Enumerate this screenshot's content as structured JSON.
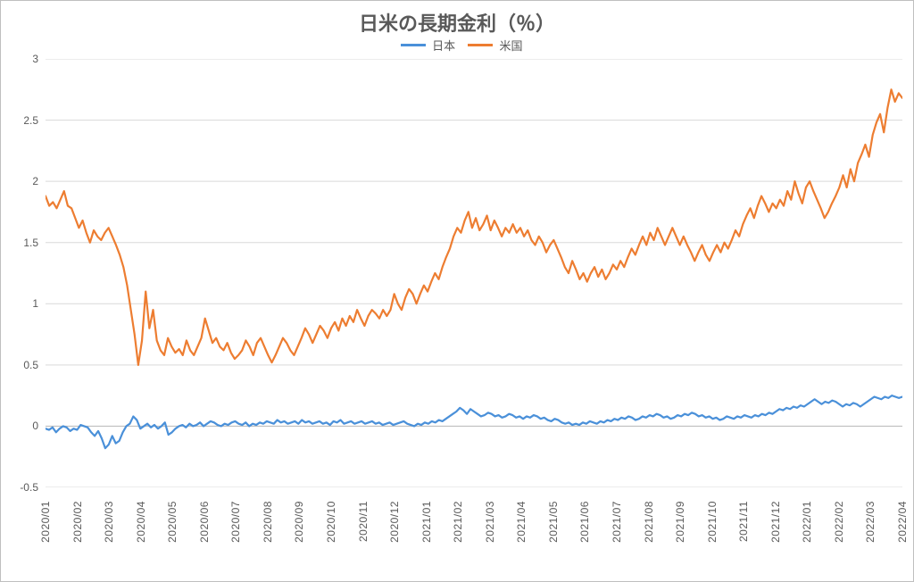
{
  "chart": {
    "type": "line",
    "title": "日米の長期金利（％）",
    "title_fontsize": 22,
    "title_color": "#595959",
    "background_color": "#ffffff",
    "plot_border_color": "#bfbfbf",
    "grid_color": "#d9d9d9",
    "axis_line_color": "#bfbfbf",
    "ylim": [
      -0.5,
      3.0
    ],
    "yticks": [
      -0.5,
      0,
      0.5,
      1,
      1.5,
      2,
      2.5,
      3
    ],
    "ytick_labels": [
      "-0.5",
      "0",
      "0.5",
      "1",
      "1.5",
      "2",
      "2.5",
      "3"
    ],
    "ytick_fontsize": 12,
    "x_categories": [
      "2020/01",
      "2020/02",
      "2020/03",
      "2020/04",
      "2020/05",
      "2020/06",
      "2020/07",
      "2020/08",
      "2020/09",
      "2020/10",
      "2020/11",
      "2020/12",
      "2021/01",
      "2021/02",
      "2021/03",
      "2021/04",
      "2021/05",
      "2021/06",
      "2021/07",
      "2021/08",
      "2021/09",
      "2021/10",
      "2021/11",
      "2021/12",
      "2022/01",
      "2022/02",
      "2022/03",
      "2022/04"
    ],
    "xtick_rotation": -90,
    "xtick_fontsize": 12,
    "legend": {
      "position": "top-center",
      "fontsize": 13,
      "items": [
        {
          "label": "日本",
          "color": "#4a90d9"
        },
        {
          "label": "米国",
          "color": "#ed7d31"
        }
      ]
    },
    "line_width": 2.2,
    "series": [
      {
        "name": "日本",
        "color": "#4a90d9",
        "values": [
          -0.02,
          -0.03,
          -0.01,
          -0.05,
          -0.02,
          0.0,
          -0.01,
          -0.04,
          -0.02,
          -0.03,
          0.01,
          0.0,
          -0.01,
          -0.05,
          -0.08,
          -0.04,
          -0.1,
          -0.18,
          -0.15,
          -0.08,
          -0.14,
          -0.12,
          -0.05,
          0.0,
          0.02,
          0.08,
          0.05,
          -0.02,
          0.0,
          0.02,
          -0.01,
          0.01,
          -0.02,
          0.0,
          0.03,
          -0.07,
          -0.05,
          -0.02,
          0.0,
          0.01,
          -0.01,
          0.02,
          0.0,
          0.01,
          0.03,
          0.0,
          0.02,
          0.04,
          0.03,
          0.01,
          0.0,
          0.02,
          0.01,
          0.03,
          0.04,
          0.02,
          0.01,
          0.03,
          0.0,
          0.02,
          0.01,
          0.03,
          0.02,
          0.04,
          0.03,
          0.02,
          0.05,
          0.03,
          0.04,
          0.02,
          0.03,
          0.04,
          0.02,
          0.05,
          0.03,
          0.04,
          0.02,
          0.03,
          0.04,
          0.02,
          0.03,
          0.01,
          0.04,
          0.03,
          0.05,
          0.02,
          0.03,
          0.04,
          0.02,
          0.03,
          0.04,
          0.02,
          0.03,
          0.04,
          0.02,
          0.03,
          0.01,
          0.02,
          0.03,
          0.01,
          0.02,
          0.03,
          0.04,
          0.02,
          0.01,
          0.0,
          0.02,
          0.01,
          0.03,
          0.02,
          0.04,
          0.03,
          0.05,
          0.04,
          0.06,
          0.08,
          0.1,
          0.12,
          0.15,
          0.13,
          0.1,
          0.14,
          0.12,
          0.1,
          0.08,
          0.09,
          0.11,
          0.1,
          0.08,
          0.09,
          0.07,
          0.08,
          0.1,
          0.09,
          0.07,
          0.08,
          0.06,
          0.08,
          0.07,
          0.09,
          0.08,
          0.06,
          0.07,
          0.05,
          0.04,
          0.06,
          0.05,
          0.03,
          0.02,
          0.03,
          0.01,
          0.02,
          0.01,
          0.03,
          0.02,
          0.04,
          0.03,
          0.02,
          0.04,
          0.03,
          0.05,
          0.04,
          0.06,
          0.05,
          0.07,
          0.06,
          0.08,
          0.07,
          0.05,
          0.06,
          0.08,
          0.07,
          0.09,
          0.08,
          0.1,
          0.09,
          0.07,
          0.08,
          0.06,
          0.07,
          0.09,
          0.08,
          0.1,
          0.09,
          0.11,
          0.1,
          0.08,
          0.09,
          0.07,
          0.08,
          0.06,
          0.07,
          0.05,
          0.06,
          0.08,
          0.07,
          0.06,
          0.08,
          0.07,
          0.09,
          0.08,
          0.07,
          0.09,
          0.08,
          0.1,
          0.09,
          0.11,
          0.1,
          0.12,
          0.14,
          0.13,
          0.15,
          0.14,
          0.16,
          0.15,
          0.17,
          0.16,
          0.18,
          0.2,
          0.22,
          0.2,
          0.18,
          0.2,
          0.19,
          0.21,
          0.2,
          0.18,
          0.16,
          0.18,
          0.17,
          0.19,
          0.18,
          0.16,
          0.18,
          0.2,
          0.22,
          0.24,
          0.23,
          0.22,
          0.24,
          0.23,
          0.25,
          0.24,
          0.23,
          0.24
        ]
      },
      {
        "name": "米国",
        "color": "#ed7d31",
        "values": [
          1.88,
          1.8,
          1.83,
          1.78,
          1.85,
          1.92,
          1.8,
          1.78,
          1.7,
          1.62,
          1.68,
          1.58,
          1.5,
          1.6,
          1.55,
          1.52,
          1.58,
          1.62,
          1.55,
          1.48,
          1.4,
          1.3,
          1.15,
          0.95,
          0.75,
          0.5,
          0.7,
          1.1,
          0.8,
          0.95,
          0.7,
          0.62,
          0.58,
          0.72,
          0.65,
          0.6,
          0.63,
          0.58,
          0.7,
          0.62,
          0.58,
          0.65,
          0.72,
          0.88,
          0.78,
          0.68,
          0.72,
          0.65,
          0.62,
          0.68,
          0.6,
          0.55,
          0.58,
          0.62,
          0.7,
          0.65,
          0.58,
          0.68,
          0.72,
          0.65,
          0.58,
          0.52,
          0.58,
          0.65,
          0.72,
          0.68,
          0.62,
          0.58,
          0.65,
          0.72,
          0.8,
          0.75,
          0.68,
          0.75,
          0.82,
          0.78,
          0.72,
          0.8,
          0.85,
          0.78,
          0.88,
          0.82,
          0.9,
          0.85,
          0.95,
          0.88,
          0.82,
          0.9,
          0.95,
          0.92,
          0.88,
          0.95,
          0.9,
          0.95,
          1.08,
          1.0,
          0.95,
          1.05,
          1.12,
          1.08,
          1.0,
          1.08,
          1.15,
          1.1,
          1.18,
          1.25,
          1.2,
          1.3,
          1.38,
          1.45,
          1.55,
          1.62,
          1.58,
          1.68,
          1.75,
          1.62,
          1.7,
          1.6,
          1.65,
          1.72,
          1.6,
          1.68,
          1.62,
          1.55,
          1.62,
          1.58,
          1.65,
          1.58,
          1.62,
          1.55,
          1.6,
          1.52,
          1.48,
          1.55,
          1.5,
          1.42,
          1.48,
          1.52,
          1.45,
          1.38,
          1.3,
          1.25,
          1.35,
          1.28,
          1.2,
          1.25,
          1.18,
          1.25,
          1.3,
          1.22,
          1.28,
          1.2,
          1.25,
          1.32,
          1.28,
          1.35,
          1.3,
          1.38,
          1.45,
          1.4,
          1.48,
          1.55,
          1.48,
          1.58,
          1.52,
          1.62,
          1.55,
          1.48,
          1.55,
          1.62,
          1.55,
          1.48,
          1.55,
          1.48,
          1.42,
          1.35,
          1.42,
          1.48,
          1.4,
          1.35,
          1.42,
          1.48,
          1.42,
          1.5,
          1.45,
          1.52,
          1.6,
          1.55,
          1.65,
          1.72,
          1.78,
          1.7,
          1.8,
          1.88,
          1.82,
          1.75,
          1.82,
          1.78,
          1.85,
          1.8,
          1.92,
          1.85,
          2.0,
          1.9,
          1.82,
          1.95,
          2.0,
          1.92,
          1.85,
          1.78,
          1.7,
          1.75,
          1.82,
          1.88,
          1.95,
          2.05,
          1.95,
          2.1,
          2.0,
          2.15,
          2.22,
          2.3,
          2.2,
          2.38,
          2.48,
          2.55,
          2.4,
          2.6,
          2.75,
          2.65,
          2.72,
          2.68
        ]
      }
    ]
  }
}
